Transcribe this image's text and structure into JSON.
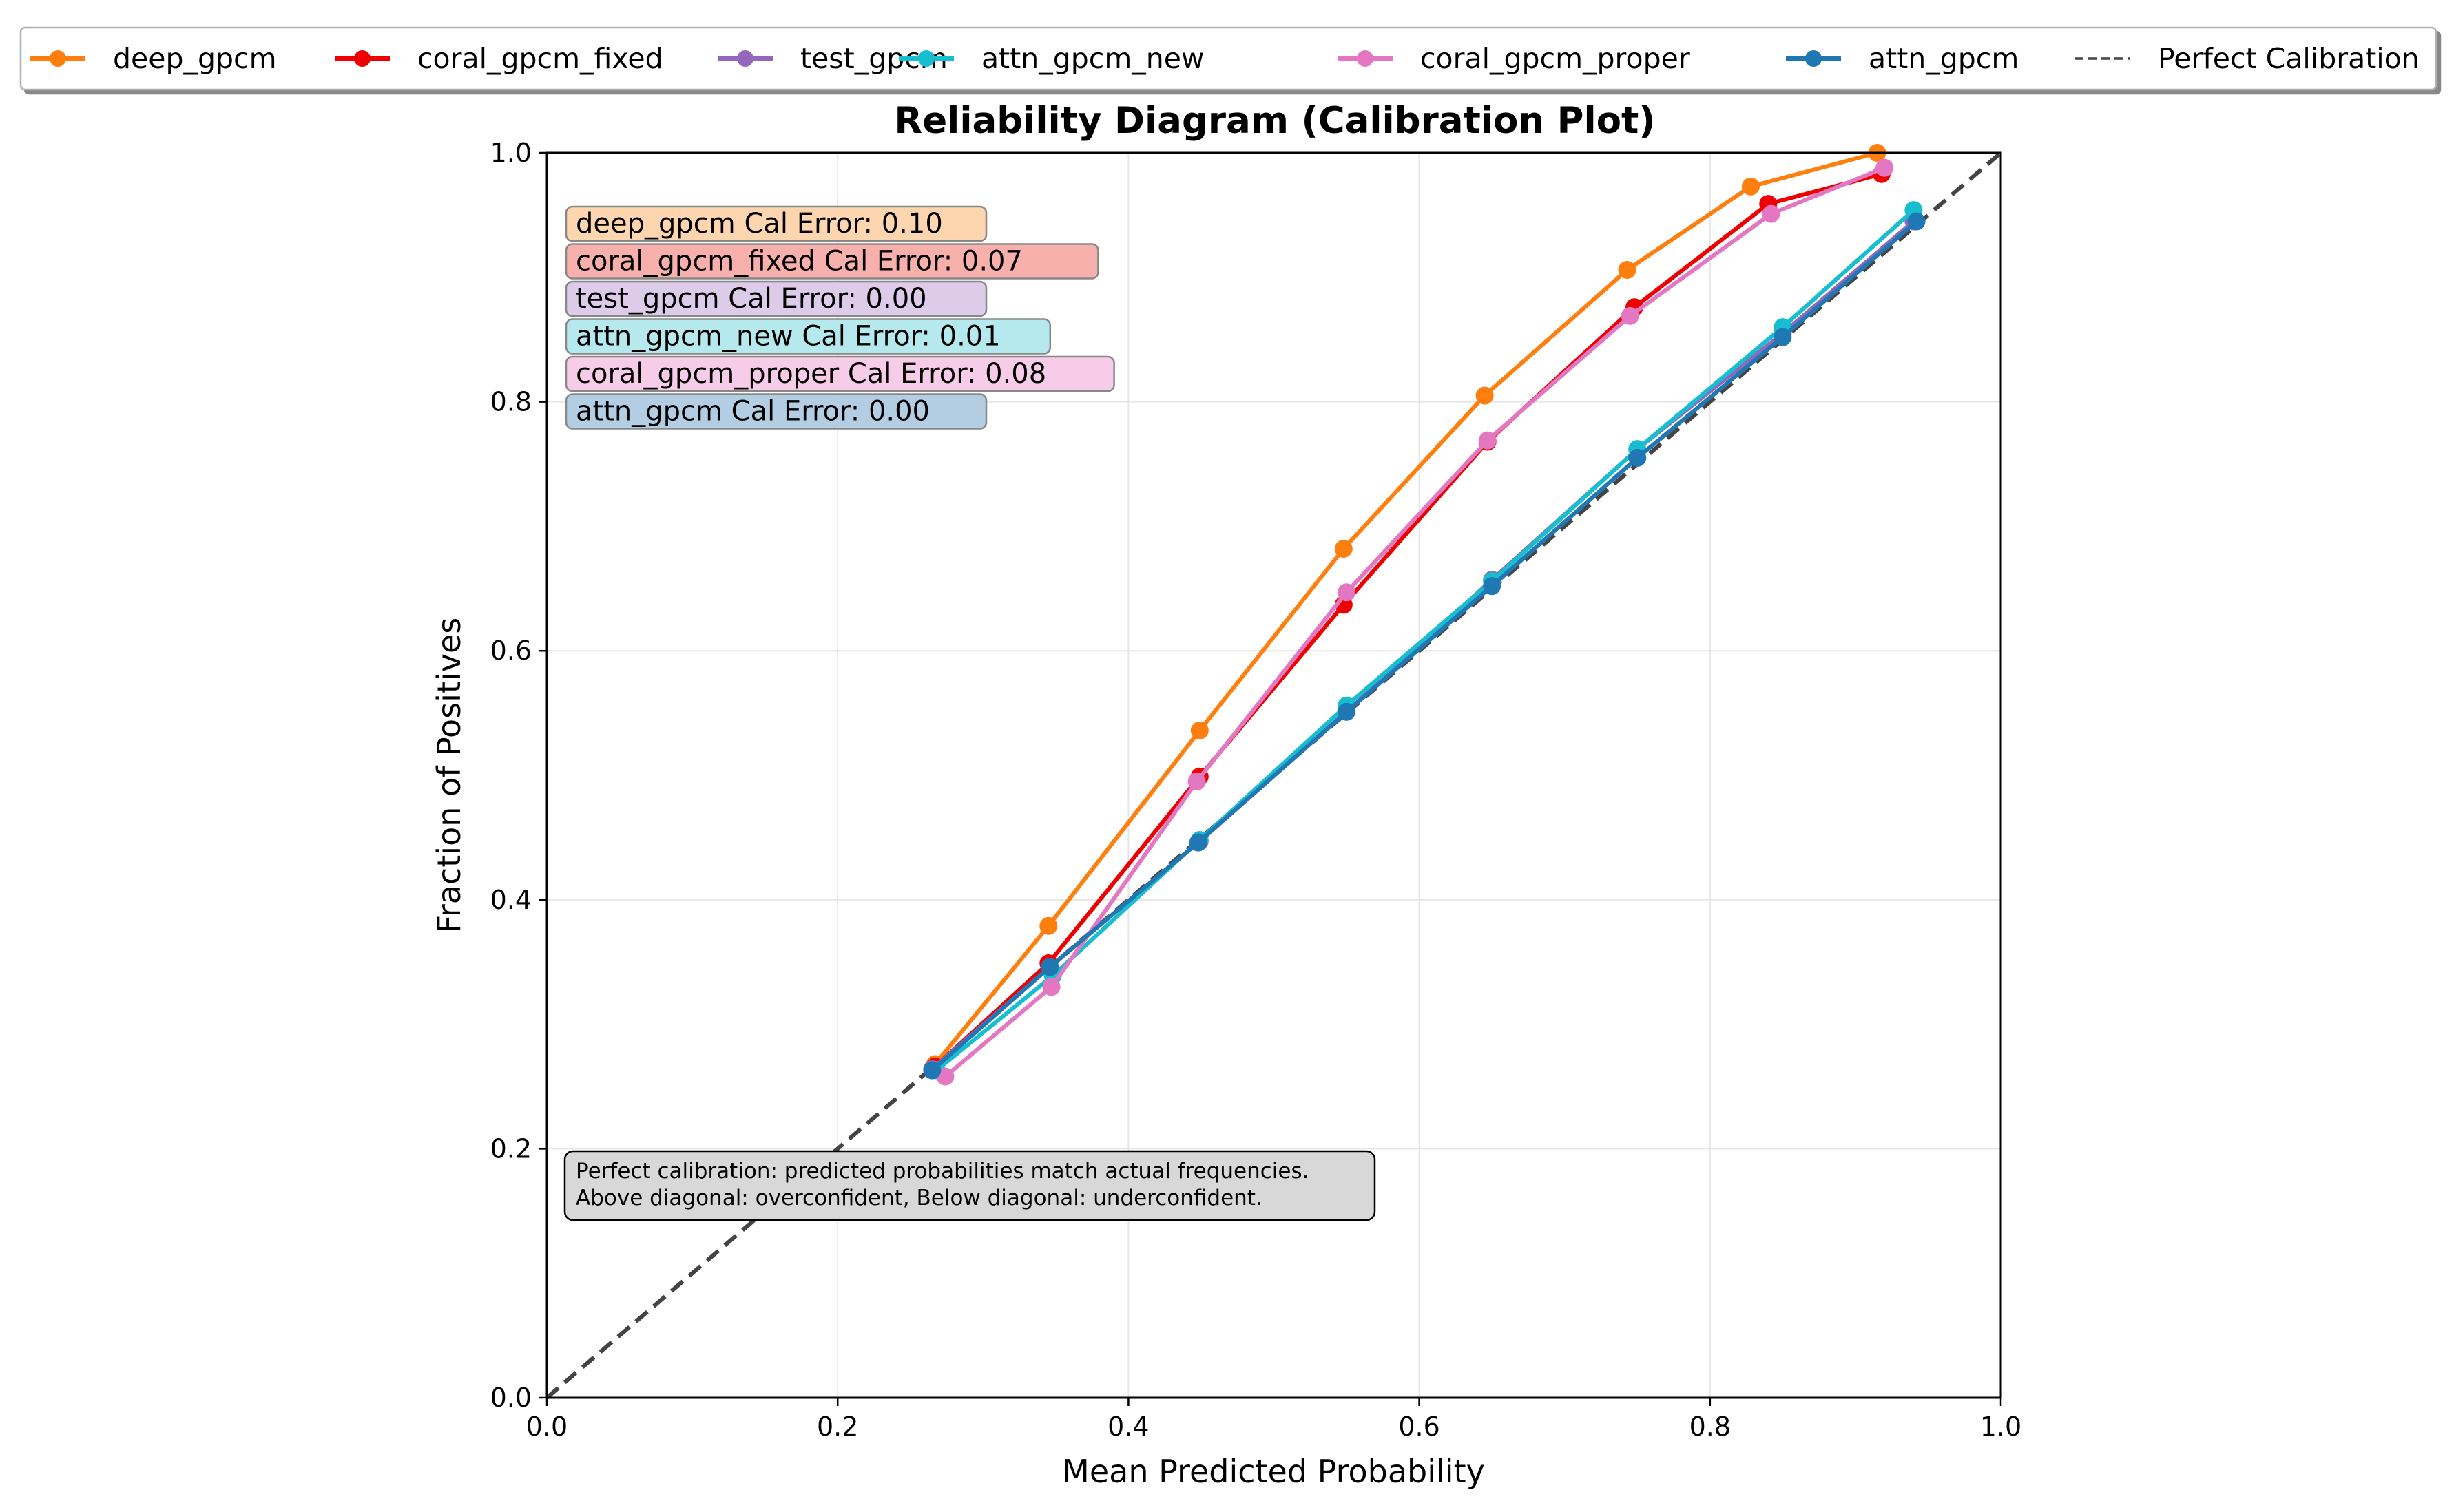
{
  "chart_data": {
    "type": "line",
    "title": "Reliability Diagram (Calibration Plot)",
    "xlabel": "Mean Predicted Probability",
    "ylabel": "Fraction of Positives",
    "xlim": [
      0.0,
      1.0
    ],
    "ylim": [
      0.0,
      1.0
    ],
    "x_ticks": [
      "0.0",
      "0.2",
      "0.4",
      "0.6",
      "0.8",
      "1.0"
    ],
    "y_ticks": [
      "0.0",
      "0.2",
      "0.4",
      "0.6",
      "0.8",
      "1.0"
    ],
    "grid": true,
    "legend_position": "top, outside plot",
    "reference_line": {
      "name": "Perfect Calibration",
      "color": "#444444",
      "style": "dashed",
      "points": [
        [
          0,
          0
        ],
        [
          1,
          1
        ]
      ]
    },
    "series": [
      {
        "name": "deep_gpcm",
        "color": "#ff7f0e",
        "box_color": "#fdd6b0",
        "annotation": "deep_gpcm Cal Error: 0.10",
        "points": [
          [
            0.267,
            0.268
          ],
          [
            0.345,
            0.379
          ],
          [
            0.449,
            0.536
          ],
          [
            0.548,
            0.682
          ],
          [
            0.645,
            0.805
          ],
          [
            0.743,
            0.906
          ],
          [
            0.828,
            0.973
          ],
          [
            0.915,
            1.0
          ]
        ]
      },
      {
        "name": "coral_gpcm_fixed",
        "color": "#ee0000",
        "box_color": "#f8b0ad",
        "annotation": "coral_gpcm_fixed Cal Error: 0.07",
        "points": [
          [
            0.267,
            0.266
          ],
          [
            0.345,
            0.349
          ],
          [
            0.449,
            0.499
          ],
          [
            0.548,
            0.637
          ],
          [
            0.647,
            0.768
          ],
          [
            0.748,
            0.876
          ],
          [
            0.84,
            0.959
          ],
          [
            0.918,
            0.983
          ]
        ]
      },
      {
        "name": "test_gpcm",
        "color": "#9467bd",
        "box_color": "#dccbe9",
        "annotation": "test_gpcm Cal Error: 0.00",
        "points": [
          [
            0.265,
            0.264
          ],
          [
            0.346,
            0.346
          ],
          [
            0.449,
            0.447
          ],
          [
            0.55,
            0.551
          ],
          [
            0.65,
            0.657
          ],
          [
            0.75,
            0.762
          ],
          [
            0.85,
            0.855
          ],
          [
            0.94,
            0.945
          ]
        ]
      },
      {
        "name": "attn_gpcm_new",
        "color": "#17becf",
        "box_color": "#b5e9ee",
        "annotation": "attn_gpcm_new Cal Error: 0.01",
        "points": [
          [
            0.268,
            0.263
          ],
          [
            0.348,
            0.339
          ],
          [
            0.449,
            0.448
          ],
          [
            0.55,
            0.556
          ],
          [
            0.65,
            0.656
          ],
          [
            0.75,
            0.762
          ],
          [
            0.85,
            0.86
          ],
          [
            0.94,
            0.954
          ]
        ]
      },
      {
        "name": "coral_gpcm_proper",
        "color": "#e377c2",
        "box_color": "#f7cce9",
        "annotation": "coral_gpcm_proper Cal Error: 0.08",
        "points": [
          [
            0.274,
            0.258
          ],
          [
            0.347,
            0.33
          ],
          [
            0.447,
            0.495
          ],
          [
            0.55,
            0.647
          ],
          [
            0.647,
            0.769
          ],
          [
            0.745,
            0.869
          ],
          [
            0.842,
            0.951
          ],
          [
            0.92,
            0.988
          ]
        ]
      },
      {
        "name": "attn_gpcm",
        "color": "#1f77b4",
        "box_color": "#b3cde3",
        "annotation": "attn_gpcm Cal Error: 0.00",
        "points": [
          [
            0.265,
            0.263
          ],
          [
            0.346,
            0.346
          ],
          [
            0.448,
            0.446
          ],
          [
            0.55,
            0.551
          ],
          [
            0.65,
            0.652
          ],
          [
            0.75,
            0.755
          ],
          [
            0.85,
            0.852
          ],
          [
            0.942,
            0.945
          ]
        ]
      }
    ],
    "note_lines": [
      "Perfect calibration: predicted probabilities match actual frequencies.",
      "Above diagonal: overconfident, Below diagonal: underconfident."
    ]
  }
}
